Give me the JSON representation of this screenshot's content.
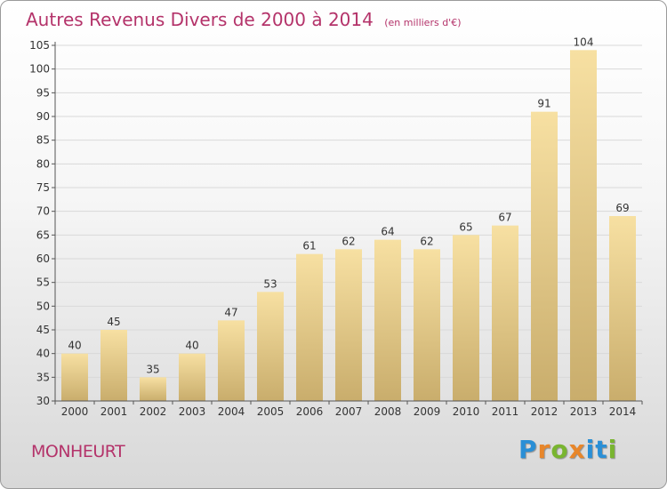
{
  "title": "Autres Revenus Divers de 2000 à 2014",
  "unit": "(en milliers d'€)",
  "place": "MONHEURT",
  "brand": {
    "letters": [
      "P",
      "r",
      "o",
      "x",
      "i",
      "t",
      "i"
    ],
    "colors": [
      "#2a8fd6",
      "#e8862a",
      "#79b530",
      "#e8862a",
      "#2a8fd6",
      "#2a8fd6",
      "#79b530"
    ]
  },
  "colors": {
    "title": "#b4336a",
    "bar_light": "#f7e0a2",
    "bar_dark": "#c9ad6c",
    "axis": "#555555",
    "grid": "#d9d9d9",
    "text": "#333333"
  },
  "chart_data": {
    "type": "bar",
    "categories": [
      "2000",
      "2001",
      "2002",
      "2003",
      "2004",
      "2005",
      "2006",
      "2007",
      "2008",
      "2009",
      "2010",
      "2011",
      "2012",
      "2013",
      "2014"
    ],
    "values": [
      40,
      45,
      35,
      40,
      47,
      53,
      61,
      62,
      64,
      62,
      65,
      67,
      91,
      104,
      69
    ],
    "data_labels": [
      "40",
      "45",
      "35",
      "40",
      "47",
      "53",
      "61",
      "62",
      "64",
      "62",
      "65",
      "67",
      "91",
      "104",
      "69"
    ],
    "ylim": [
      30,
      105
    ],
    "yticks": [
      30,
      35,
      40,
      45,
      50,
      55,
      60,
      65,
      70,
      75,
      80,
      85,
      90,
      95,
      100,
      105
    ],
    "grid": true,
    "xlabel": "",
    "ylabel": ""
  }
}
